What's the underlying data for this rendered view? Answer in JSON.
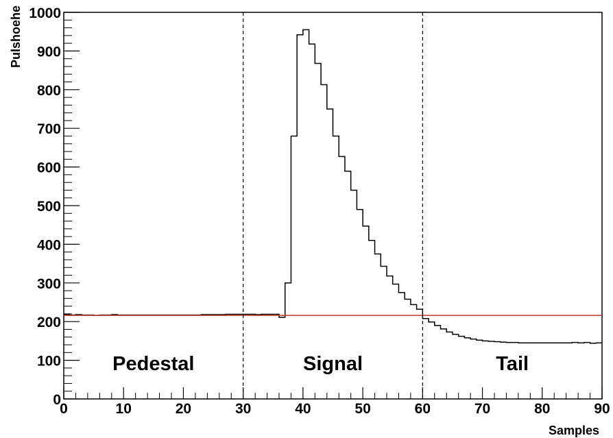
{
  "chart_data": {
    "type": "histogram",
    "xlabel": "Samples",
    "ylabel": "Pulshoehe",
    "xlim": [
      0,
      90
    ],
    "ylim": [
      0,
      1000
    ],
    "x_ticks": [
      0,
      10,
      20,
      30,
      40,
      50,
      60,
      70,
      80,
      90
    ],
    "y_ticks": [
      0,
      100,
      200,
      300,
      400,
      500,
      600,
      700,
      800,
      900,
      1000
    ],
    "bin_width": 1,
    "values": [
      218,
      217,
      218,
      217,
      217,
      216,
      217,
      217,
      218,
      217,
      217,
      217,
      217,
      217,
      217,
      217,
      217,
      217,
      217,
      217,
      217,
      217,
      217,
      218,
      218,
      218,
      218,
      219,
      219,
      219,
      219,
      219,
      218,
      219,
      219,
      219,
      211,
      300,
      680,
      942,
      955,
      918,
      868,
      813,
      750,
      680,
      627,
      589,
      540,
      490,
      447,
      410,
      375,
      343,
      318,
      297,
      275,
      258,
      244,
      232,
      208,
      199,
      190,
      181,
      173,
      167,
      162,
      158,
      155,
      152,
      150,
      149,
      148,
      147,
      146,
      146,
      145,
      145,
      145,
      145,
      145,
      145,
      145,
      145,
      145,
      146,
      145,
      146,
      144,
      145
    ],
    "baseline": {
      "value": 216,
      "color": "#c0392b"
    },
    "dividers": [
      30,
      60
    ],
    "regions": [
      {
        "label": "Pedestal",
        "x": 15
      },
      {
        "label": "Signal",
        "x": 45
      },
      {
        "label": "Tail",
        "x": 75
      }
    ],
    "grid": false,
    "colors": {
      "histogram": "#000000",
      "baseline": "#c0392b",
      "dividers": "#000000"
    }
  }
}
